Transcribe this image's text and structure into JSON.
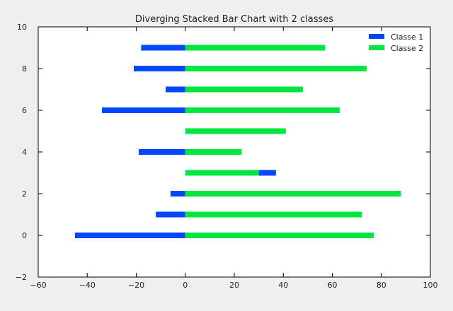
{
  "chart_data": {
    "type": "bar",
    "orientation": "horizontal",
    "stacking": "diverging",
    "title": "Diverging Stacked Bar Chart with 2 classes",
    "xlabel": "",
    "ylabel": "",
    "xlim": [
      -60,
      100
    ],
    "ylim": [
      -2,
      10
    ],
    "x_ticks": [
      -60,
      -40,
      -20,
      0,
      20,
      40,
      60,
      80,
      100
    ],
    "y_ticks": [
      -2,
      0,
      2,
      4,
      6,
      8,
      10
    ],
    "grid": false,
    "legend_position": "top-right",
    "y": [
      0,
      1,
      2,
      3,
      4,
      5,
      6,
      7,
      8,
      9
    ],
    "series": [
      {
        "name": "Classe 1",
        "color": "#0046ff",
        "segments": [
          [
            -45,
            0
          ],
          [
            -12,
            0
          ],
          [
            -6,
            0
          ],
          [
            30,
            37
          ],
          [
            -19,
            0
          ],
          [
            0,
            0
          ],
          [
            -34,
            0
          ],
          [
            -8,
            0
          ],
          [
            -21,
            0
          ],
          [
            -18,
            0
          ]
        ]
      },
      {
        "name": "Classe 2",
        "color": "#00e640",
        "segments": [
          [
            0,
            77
          ],
          [
            0,
            72
          ],
          [
            0,
            88
          ],
          [
            0,
            30
          ],
          [
            0,
            23
          ],
          [
            0,
            41
          ],
          [
            0,
            63
          ],
          [
            0,
            48
          ],
          [
            0,
            74
          ],
          [
            0,
            57
          ]
        ]
      }
    ]
  }
}
